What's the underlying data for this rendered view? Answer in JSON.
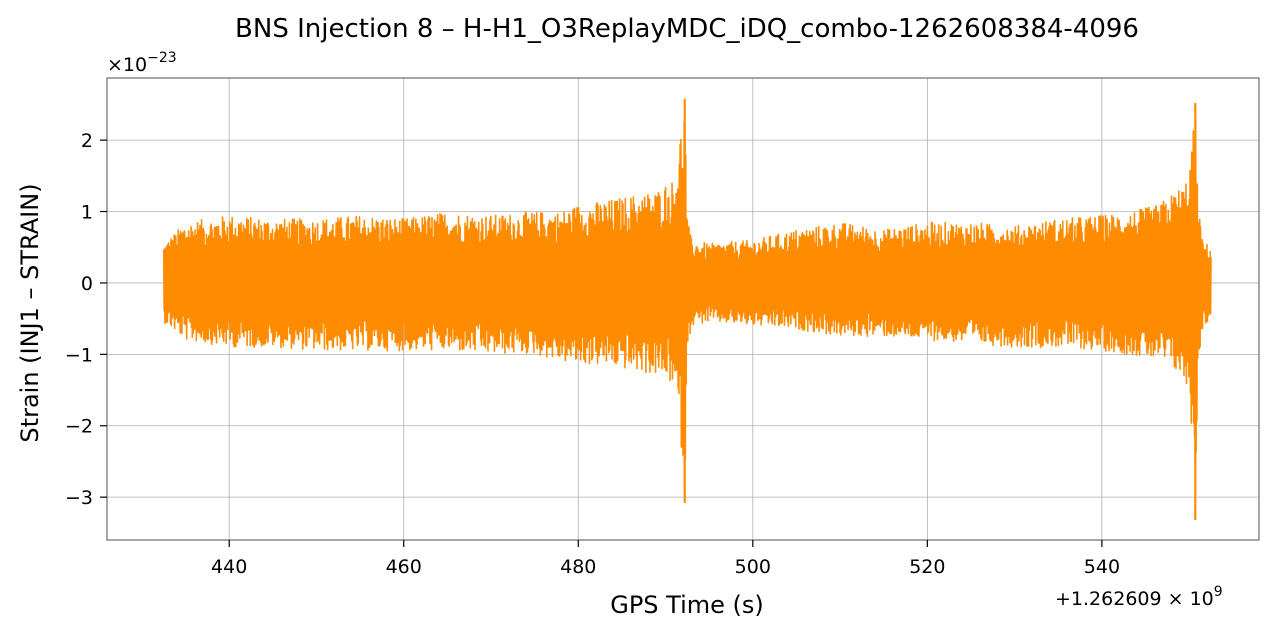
{
  "chart_data": {
    "type": "line",
    "title": "BNS Injection 8 – H-H1_O3ReplayMDC_iDQ_combo-1262608384-4096",
    "xlabel": "GPS Time (s)",
    "ylabel": "Strain (INJ1 – STRAIN)",
    "x_offset_label": {
      "prefix": "+1.262609 × 10",
      "exponent": "9"
    },
    "y_scale_label": {
      "prefix": "×10",
      "exponent": "−23"
    },
    "xlim": [
      426,
      558
    ],
    "ylim": [
      -3.6,
      2.87
    ],
    "x_ticks": [
      440,
      460,
      480,
      500,
      520,
      540
    ],
    "x_tick_labels": [
      "440",
      "460",
      "480",
      "500",
      "520",
      "540"
    ],
    "y_ticks": [
      2,
      1,
      0,
      -1,
      -2,
      -3
    ],
    "y_tick_labels": [
      "2",
      "1",
      "0",
      "−1",
      "−2",
      "−3"
    ],
    "grid": true,
    "series": [
      {
        "color": "#ff8c00",
        "x": [
          432.5,
          435,
          440,
          445,
          450,
          455,
          460,
          465,
          470,
          475,
          478,
          480,
          483,
          485,
          487,
          489,
          490,
          491,
          491.8,
          492.2,
          492.5,
          493,
          495,
          500,
          505,
          510,
          515,
          520,
          525,
          530,
          535,
          540,
          543,
          545,
          546.5,
          547.5,
          548.5,
          549.5,
          550,
          550.5,
          550.7,
          551,
          551.5,
          552.5
        ],
        "y_max": [
          0.55,
          0.85,
          0.95,
          0.9,
          0.9,
          0.95,
          0.9,
          1.0,
          0.95,
          1.0,
          1.0,
          1.1,
          1.15,
          1.2,
          1.25,
          1.3,
          1.4,
          1.45,
          2.2,
          2.58,
          0.9,
          0.6,
          0.55,
          0.6,
          0.75,
          0.85,
          0.75,
          0.85,
          0.85,
          0.8,
          0.9,
          0.95,
          1.0,
          1.05,
          1.1,
          1.2,
          1.3,
          1.4,
          1.6,
          2.2,
          2.52,
          1.2,
          0.6,
          0.5
        ],
        "y_min": [
          -0.55,
          -0.8,
          -0.9,
          -0.9,
          -0.95,
          -0.95,
          -0.95,
          -0.95,
          -1.0,
          -1.0,
          -1.1,
          -1.15,
          -1.15,
          -1.2,
          -1.25,
          -1.3,
          -1.35,
          -1.45,
          -2.3,
          -3.08,
          -0.9,
          -0.6,
          -0.55,
          -0.6,
          -0.65,
          -0.75,
          -0.75,
          -0.8,
          -0.85,
          -0.9,
          -0.9,
          -0.95,
          -1.0,
          -1.05,
          -1.1,
          -1.15,
          -1.25,
          -1.4,
          -1.6,
          -2.4,
          -3.32,
          -1.2,
          -0.65,
          -0.5
        ]
      }
    ]
  }
}
